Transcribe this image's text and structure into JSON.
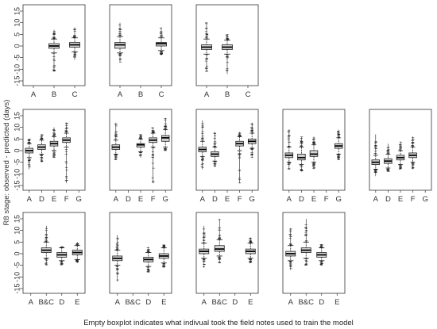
{
  "chart_data": {
    "type": "boxplot",
    "ylabel": "R8 stage: observed - predicted (days)",
    "caption": "Empty boxplot indicates what indivual took the field notes used to train the model",
    "ylim": [
      -15,
      15
    ],
    "yticks": [
      15,
      10,
      5,
      0,
      -5,
      -10,
      -15
    ],
    "panels": [
      {
        "row": 0,
        "col": 0,
        "categories": [
          "A",
          "B",
          "C"
        ],
        "boxes": [
          null,
          {
            "q1": -1,
            "median": 0,
            "q3": 1,
            "lo": -3,
            "hi": 3,
            "ymin": -11,
            "ymax": 7
          },
          {
            "q1": -0.5,
            "median": 0.5,
            "q3": 1.5,
            "lo": -2.5,
            "hi": 3.5,
            "ymin": -6,
            "ymax": 8
          }
        ]
      },
      {
        "row": 0,
        "col": 1,
        "categories": [
          "A",
          "B",
          "C"
        ],
        "boxes": [
          {
            "q1": -1,
            "median": 0.5,
            "q3": 1.5,
            "lo": -3,
            "hi": 4,
            "ymin": -7,
            "ymax": 10
          },
          null,
          {
            "q1": 0,
            "median": 1,
            "q3": 1.5,
            "lo": -2,
            "hi": 3.5,
            "ymin": -4,
            "ymax": 8
          }
        ]
      },
      {
        "row": 0,
        "col": 2,
        "categories": [
          "A",
          "B",
          "C"
        ],
        "boxes": [
          {
            "q1": -1.5,
            "median": -0.5,
            "q3": 0.5,
            "lo": -3.5,
            "hi": 3,
            "ymin": -11,
            "ymax": 10
          },
          {
            "q1": -1.5,
            "median": -0.5,
            "q3": 0.5,
            "lo": -3.5,
            "hi": 2.5,
            "ymin": -12,
            "ymax": 5
          },
          null
        ]
      },
      {
        "row": 1,
        "col": 0,
        "categories": [
          "A",
          "D",
          "E",
          "F",
          "G"
        ],
        "boxes": [
          {
            "q1": -1,
            "median": 0,
            "q3": 1,
            "lo": -3,
            "hi": 3,
            "ymin": -8,
            "ymax": 5
          },
          {
            "q1": 0.5,
            "median": 1.5,
            "q3": 2.5,
            "lo": -1.5,
            "hi": 4.5,
            "ymin": -5,
            "ymax": 7
          },
          {
            "q1": 2,
            "median": 3,
            "q3": 4,
            "lo": 0,
            "hi": 6,
            "ymin": -3,
            "ymax": 10
          },
          {
            "q1": 3.5,
            "median": 4.5,
            "q3": 5.5,
            "lo": 1.5,
            "hi": 7.5,
            "ymin": -14,
            "ymax": 12
          },
          null
        ]
      },
      {
        "row": 1,
        "col": 1,
        "categories": [
          "A",
          "D",
          "E",
          "F",
          "G"
        ],
        "boxes": [
          {
            "q1": 0.5,
            "median": 1.5,
            "q3": 2.5,
            "lo": -1.5,
            "hi": 4.5,
            "ymin": -4,
            "ymax": 12
          },
          null,
          {
            "q1": 1.5,
            "median": 2.5,
            "q3": 3,
            "lo": -0.5,
            "hi": 5,
            "ymin": -3,
            "ymax": 7
          },
          {
            "q1": 3.5,
            "median": 4.5,
            "q3": 5.5,
            "lo": 1.5,
            "hi": 7.5,
            "ymin": -14,
            "ymax": 10
          },
          {
            "q1": 4,
            "median": 5.5,
            "q3": 6.5,
            "lo": 1.5,
            "hi": 9,
            "ymin": 0,
            "ymax": 14
          }
        ]
      },
      {
        "row": 1,
        "col": 2,
        "categories": [
          "A",
          "D",
          "E",
          "F",
          "G"
        ],
        "boxes": [
          {
            "q1": -0.5,
            "median": 0.5,
            "q3": 1.5,
            "lo": -2.5,
            "hi": 4,
            "ymin": -8,
            "ymax": 13
          },
          {
            "q1": -2.5,
            "median": -1.5,
            "q3": -0.5,
            "lo": -4.5,
            "hi": 1.5,
            "ymin": -7,
            "ymax": 8
          },
          null,
          {
            "q1": 2,
            "median": 3,
            "q3": 4,
            "lo": 0,
            "hi": 6,
            "ymin": -14,
            "ymax": 8
          },
          {
            "q1": 3,
            "median": 4,
            "q3": 5,
            "lo": 1,
            "hi": 7.5,
            "ymin": -3,
            "ymax": 12
          }
        ]
      },
      {
        "row": 1,
        "col": 3,
        "categories": [
          "A",
          "D",
          "E",
          "F",
          "G"
        ],
        "boxes": [
          {
            "q1": -3,
            "median": -2,
            "q3": -1,
            "lo": -5,
            "hi": 1.5,
            "ymin": -8,
            "ymax": 9
          },
          {
            "q1": -4,
            "median": -3,
            "q3": -1.5,
            "lo": -6,
            "hi": 1.5,
            "ymin": -9,
            "ymax": 6
          },
          {
            "q1": -2.5,
            "median": -1.5,
            "q3": 0,
            "lo": -5,
            "hi": 2.5,
            "ymin": -8,
            "ymax": 6
          },
          null,
          {
            "q1": 1,
            "median": 2,
            "q3": 3,
            "lo": -1.5,
            "hi": 5.5,
            "ymin": -4,
            "ymax": 9
          }
        ]
      },
      {
        "row": 1,
        "col": 4,
        "categories": [
          "A",
          "D",
          "E",
          "F",
          "G"
        ],
        "boxes": [
          {
            "q1": -6,
            "median": -5,
            "q3": -4,
            "lo": -8,
            "hi": -2,
            "ymin": -11,
            "ymax": 7
          },
          {
            "q1": -5.5,
            "median": -4.5,
            "q3": -3.5,
            "lo": -7.5,
            "hi": -1.5,
            "ymin": -9,
            "ymax": 3
          },
          {
            "q1": -4,
            "median": -3,
            "q3": -2,
            "lo": -6,
            "hi": 0,
            "ymin": -8,
            "ymax": 4
          },
          {
            "q1": -3,
            "median": -2,
            "q3": -1,
            "lo": -5,
            "hi": 1.5,
            "ymin": -8,
            "ymax": 6
          },
          null
        ]
      },
      {
        "row": 2,
        "col": 0,
        "categories": [
          "A",
          "B&C",
          "D",
          "E"
        ],
        "boxes": [
          null,
          {
            "q1": 0.5,
            "median": 1.5,
            "q3": 2.5,
            "lo": -2,
            "hi": 5,
            "ymin": -5,
            "ymax": 12
          },
          {
            "q1": -1.5,
            "median": -0.5,
            "q3": 0.5,
            "lo": -3,
            "hi": 2.5,
            "ymin": -5,
            "ymax": 3
          },
          {
            "q1": -0.5,
            "median": 0.5,
            "q3": 1.5,
            "lo": -2.5,
            "hi": 3.5,
            "ymin": -4,
            "ymax": 5
          }
        ]
      },
      {
        "row": 2,
        "col": 1,
        "categories": [
          "A",
          "B&C",
          "D",
          "E"
        ],
        "boxes": [
          {
            "q1": -3,
            "median": -2,
            "q3": -1,
            "lo": -5,
            "hi": 1.5,
            "ymin": -12,
            "ymax": 8
          },
          null,
          {
            "q1": -3.5,
            "median": -2.5,
            "q3": -1.5,
            "lo": -5.5,
            "hi": 0.5,
            "ymin": -8,
            "ymax": 3
          },
          {
            "q1": -2,
            "median": -1,
            "q3": 0,
            "lo": -4,
            "hi": 2.5,
            "ymin": -6,
            "ymax": 4
          }
        ]
      },
      {
        "row": 2,
        "col": 2,
        "categories": [
          "A",
          "B&C",
          "D",
          "E"
        ],
        "boxes": [
          {
            "q1": 0,
            "median": 1,
            "q3": 2,
            "lo": -2,
            "hi": 4.5,
            "ymin": -6,
            "ymax": 12
          },
          {
            "q1": 1,
            "median": 2,
            "q3": 3.5,
            "lo": -1,
            "hi": 6,
            "ymin": -4,
            "ymax": 15
          },
          null,
          {
            "q1": 0,
            "median": 1,
            "q3": 2,
            "lo": -2,
            "hi": 4.5,
            "ymin": -4,
            "ymax": 7
          }
        ]
      },
      {
        "row": 2,
        "col": 3,
        "categories": [
          "A",
          "B&C",
          "D",
          "E"
        ],
        "boxes": [
          {
            "q1": -1,
            "median": 0,
            "q3": 1,
            "lo": -3,
            "hi": 3.5,
            "ymin": -7,
            "ymax": 11
          },
          {
            "q1": 0.5,
            "median": 1.5,
            "q3": 2.5,
            "lo": -2,
            "hi": 5,
            "ymin": -5,
            "ymax": 15
          },
          {
            "q1": -1.5,
            "median": -0.5,
            "q3": 0.5,
            "lo": -3,
            "hi": 2.5,
            "ymin": -5,
            "ymax": 4
          },
          null
        ]
      }
    ]
  }
}
